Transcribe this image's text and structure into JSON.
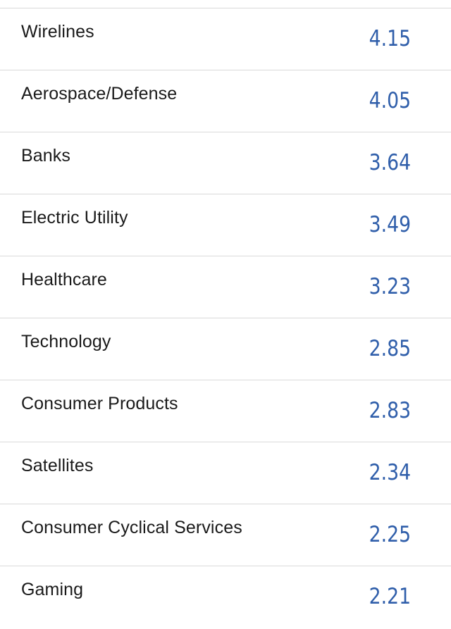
{
  "rows": [
    {
      "label": "Wirelines",
      "value": "4.15"
    },
    {
      "label": "Aerospace/Defense",
      "value": "4.05"
    },
    {
      "label": "Banks",
      "value": "3.64"
    },
    {
      "label": "Electric Utility",
      "value": "3.49"
    },
    {
      "label": "Healthcare",
      "value": "3.23"
    },
    {
      "label": "Technology",
      "value": "2.85"
    },
    {
      "label": "Consumer Products",
      "value": "2.83"
    },
    {
      "label": "Satellites",
      "value": "2.34"
    },
    {
      "label": "Consumer Cyclical Services",
      "value": "2.25"
    },
    {
      "label": "Gaming",
      "value": "2.21"
    }
  ],
  "colors": {
    "value_text": "#2f5eaa",
    "label_text": "#1a1a1a",
    "divider": "#d9d9d9"
  }
}
